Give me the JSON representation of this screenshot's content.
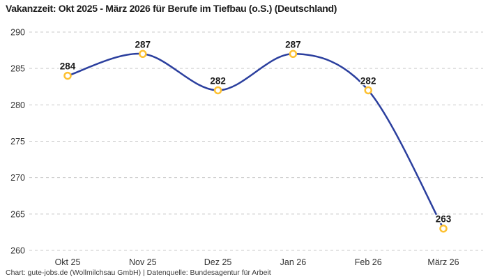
{
  "header": {
    "title": "Vakanzzeit: Okt 2025 - März 2026 für Berufe im Tiefbau (o.S.) (Deutschland)"
  },
  "footer": {
    "credit": "Chart: gute-jobs.de (Wollmilchsau GmbH) | Datenquelle: Bundesagentur für Arbeit"
  },
  "chart_data": {
    "type": "line",
    "title": "Vakanzzeit: Okt 2025 - März 2026 für Berufe im Tiefbau (o.S.) (Deutschland)",
    "categories": [
      "Okt 25",
      "Nov 25",
      "Dez 25",
      "Jan 26",
      "Feb 26",
      "März 26"
    ],
    "series": [
      {
        "name": "Vakanzzeit",
        "values": [
          284,
          287,
          282,
          287,
          282,
          263
        ]
      }
    ],
    "xlabel": "",
    "ylabel": "",
    "ylim": [
      260,
      290
    ],
    "yticks": [
      260,
      265,
      270,
      275,
      280,
      285,
      290
    ],
    "grid": "horizontal-dashed",
    "legend_position": "none",
    "curve": "smooth",
    "data_labels": true,
    "colors": {
      "line": "#2b3f9e",
      "marker_stroke": "#fdc132",
      "marker_fill": "#ffffff",
      "data_label": "#1a1a1a",
      "axis_text": "#333333",
      "gridline": "#c9c9c9",
      "background": "#ffffff"
    }
  }
}
